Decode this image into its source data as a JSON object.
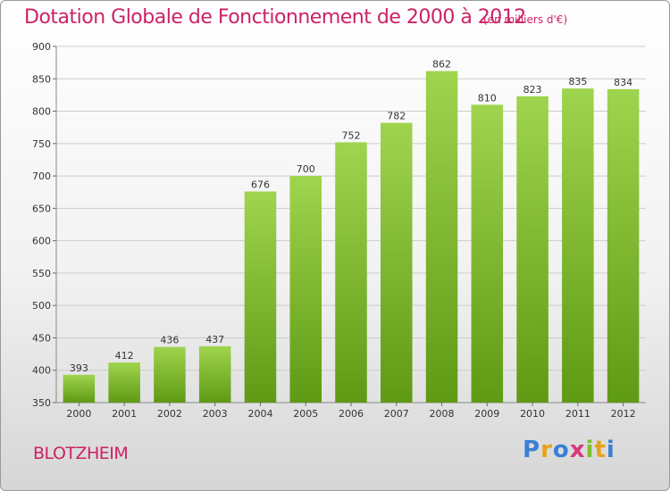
{
  "header": {
    "title": "Dotation Globale de Fonctionnement de 2000 à 2012",
    "subtitle": "(en milliers d'€)"
  },
  "footer": {
    "commune": "BLOTZHEIM",
    "logo_letters": [
      "P",
      "r",
      "o",
      "x",
      "i",
      "t",
      "i"
    ],
    "logo_colors": [
      "#3a7fd5",
      "#e8a21a",
      "#3a7fd5",
      "#d63a7a",
      "#7fbf2a",
      "#e8a21a",
      "#3a7fd5"
    ]
  },
  "chart_data": {
    "type": "bar",
    "categories": [
      "2000",
      "2001",
      "2002",
      "2003",
      "2004",
      "2005",
      "2006",
      "2007",
      "2008",
      "2009",
      "2010",
      "2011",
      "2012"
    ],
    "values": [
      393,
      412,
      436,
      437,
      676,
      700,
      752,
      782,
      862,
      810,
      823,
      835,
      834
    ],
    "ylim": [
      350,
      900
    ],
    "yticks": [
      350,
      400,
      450,
      500,
      550,
      600,
      650,
      700,
      750,
      800,
      850,
      900
    ],
    "grid": true,
    "colors": {
      "bar_light": "#9fd44e",
      "bar_dark": "#5f9a14",
      "grid": "#cccccc",
      "title": "#cc2266"
    }
  }
}
